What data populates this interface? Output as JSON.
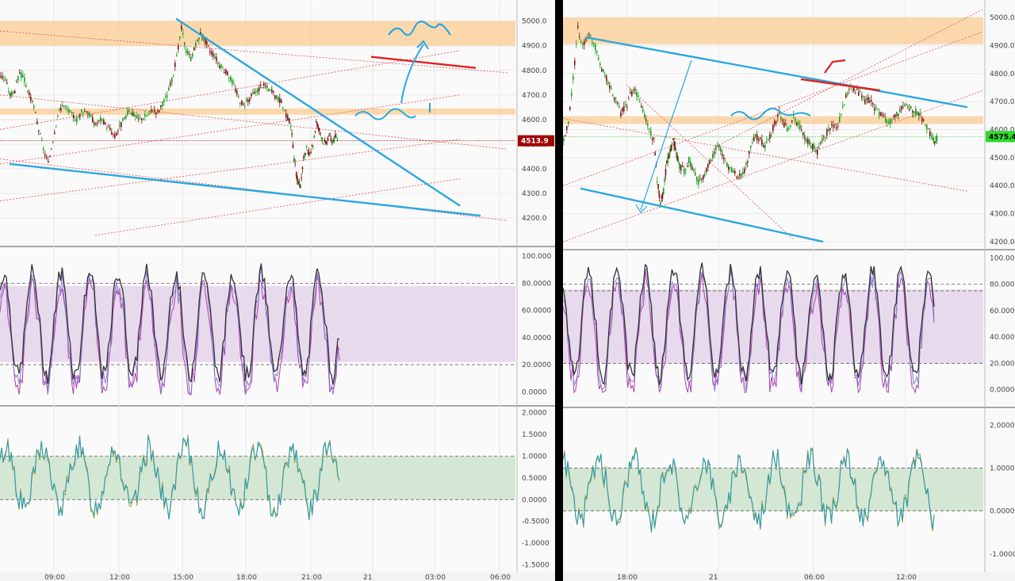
{
  "chart_data": [
    {
      "id": "left",
      "type": "candlestick-with-oscillators",
      "price_panel": {
        "ylim": [
          4120,
          5060
        ],
        "yticks": [
          "5000.0",
          "4900.0",
          "4800.0",
          "4700.0",
          "4600.0",
          "4500.0",
          "4400.0",
          "4300.0",
          "4200.0"
        ],
        "last_price": "4513.9",
        "last_price_color": "#a00000",
        "candle_colors": {
          "up": "#1a9e1a",
          "down": "#7a1010"
        },
        "price_path": [
          [
            0,
            4780
          ],
          [
            6,
            4760
          ],
          [
            12,
            4700
          ],
          [
            18,
            4720
          ],
          [
            24,
            4790
          ],
          [
            30,
            4760
          ],
          [
            36,
            4700
          ],
          [
            42,
            4650
          ],
          [
            48,
            4560
          ],
          [
            54,
            4480
          ],
          [
            60,
            4420
          ],
          [
            66,
            4520
          ],
          [
            72,
            4620
          ],
          [
            78,
            4660
          ],
          [
            84,
            4640
          ],
          [
            90,
            4620
          ],
          [
            96,
            4600
          ],
          [
            102,
            4630
          ],
          [
            108,
            4640
          ],
          [
            114,
            4610
          ],
          [
            120,
            4580
          ],
          [
            126,
            4600
          ],
          [
            132,
            4580
          ],
          [
            138,
            4560
          ],
          [
            144,
            4530
          ],
          [
            150,
            4570
          ],
          [
            156,
            4600
          ],
          [
            162,
            4640
          ],
          [
            168,
            4620
          ],
          [
            174,
            4600
          ],
          [
            180,
            4610
          ],
          [
            186,
            4620
          ],
          [
            192,
            4640
          ],
          [
            198,
            4630
          ],
          [
            204,
            4660
          ],
          [
            210,
            4700
          ],
          [
            216,
            4760
          ],
          [
            222,
            4850
          ],
          [
            228,
            4970
          ],
          [
            234,
            4880
          ],
          [
            240,
            4850
          ],
          [
            246,
            4900
          ],
          [
            252,
            4950
          ],
          [
            258,
            4920
          ],
          [
            264,
            4880
          ],
          [
            270,
            4860
          ],
          [
            276,
            4820
          ],
          [
            282,
            4800
          ],
          [
            288,
            4780
          ],
          [
            294,
            4740
          ],
          [
            300,
            4690
          ],
          [
            306,
            4660
          ],
          [
            312,
            4680
          ],
          [
            318,
            4700
          ],
          [
            324,
            4720
          ],
          [
            330,
            4740
          ],
          [
            336,
            4730
          ],
          [
            342,
            4710
          ],
          [
            348,
            4690
          ],
          [
            354,
            4670
          ],
          [
            360,
            4620
          ],
          [
            366,
            4580
          ],
          [
            370,
            4440
          ],
          [
            374,
            4360
          ],
          [
            378,
            4330
          ],
          [
            382,
            4440
          ],
          [
            386,
            4480
          ],
          [
            390,
            4450
          ],
          [
            394,
            4500
          ],
          [
            398,
            4590
          ],
          [
            402,
            4560
          ],
          [
            406,
            4520
          ],
          [
            410,
            4500
          ],
          [
            414,
            4540
          ],
          [
            418,
            4510
          ],
          [
            422,
            4530
          ],
          [
            426,
            4514
          ]
        ],
        "zones": [
          {
            "y1": 4900,
            "y2": 5000
          },
          {
            "y1": 4620,
            "y2": 4645
          }
        ],
        "trendlines": [
          {
            "x1": 222,
            "y1": 5010,
            "x2": 580,
            "y2": 4250,
            "color": "#2aa8e0"
          },
          {
            "x1": 12,
            "y1": 4420,
            "x2": 606,
            "y2": 4210,
            "color": "#2aa8e0"
          },
          {
            "x1": 468,
            "y1": 4855,
            "x2": 600,
            "y2": 4810,
            "color": "#e02020"
          }
        ],
        "dotted_lines": [
          {
            "x1": 0,
            "y1": 4560,
            "x2": 580,
            "y2": 4880
          },
          {
            "x1": 0,
            "y1": 4420,
            "x2": 580,
            "y2": 4700
          },
          {
            "x1": 0,
            "y1": 4270,
            "x2": 580,
            "y2": 4520
          },
          {
            "x1": 120,
            "y1": 4130,
            "x2": 580,
            "y2": 4360
          },
          {
            "x1": 0,
            "y1": 4960,
            "x2": 640,
            "y2": 4790
          },
          {
            "x1": 0,
            "y1": 4700,
            "x2": 640,
            "y2": 4480
          },
          {
            "x1": 0,
            "y1": 4440,
            "x2": 640,
            "y2": 4190
          }
        ],
        "hline": 4514
      },
      "stoch_panel": {
        "ylim": [
          -8,
          103
        ],
        "yticks": [
          "100.000",
          "80.0000",
          "60.0000",
          "40.0000",
          "20.0000",
          "0.0000"
        ],
        "band": [
          22,
          78
        ],
        "levels": [
          80,
          20
        ],
        "seed": 7,
        "length": 214,
        "amplitude": 38
      },
      "osc_panel": {
        "ylim": [
          -1.6,
          2.05
        ],
        "yticks": [
          "2.0000",
          "1.5000",
          "1.0000",
          "0.5000",
          "0.0000",
          "-0.5000",
          "-1.0000",
          "-1.5000"
        ],
        "band": [
          0,
          1
        ],
        "seed": 13,
        "length": 214
      },
      "xticks": [
        "09:00",
        "12:00",
        "15:00",
        "18:00",
        "21:00",
        "21",
        "03:00",
        "06:00"
      ]
    },
    {
      "id": "right",
      "type": "candlestick-with-oscillators",
      "price_panel": {
        "ylim": [
          4180,
          5040
        ],
        "yticks": [
          "5000.0",
          "4900.0",
          "4800.0",
          "4700.0",
          "4600.0",
          "4500.0",
          "4400.0",
          "4300.0",
          "4200.0"
        ],
        "last_price": "4575.4",
        "last_price_color": "#2ed82e",
        "candle_colors": {
          "up": "#1a9e1a",
          "down": "#7a1010"
        },
        "price_path": [
          [
            0,
            4560
          ],
          [
            6,
            4620
          ],
          [
            12,
            4780
          ],
          [
            18,
            4960
          ],
          [
            24,
            4900
          ],
          [
            30,
            4940
          ],
          [
            36,
            4920
          ],
          [
            42,
            4880
          ],
          [
            48,
            4820
          ],
          [
            54,
            4780
          ],
          [
            60,
            4740
          ],
          [
            66,
            4700
          ],
          [
            72,
            4660
          ],
          [
            78,
            4680
          ],
          [
            84,
            4720
          ],
          [
            90,
            4740
          ],
          [
            96,
            4700
          ],
          [
            102,
            4650
          ],
          [
            108,
            4600
          ],
          [
            114,
            4560
          ],
          [
            118,
            4420
          ],
          [
            122,
            4340
          ],
          [
            126,
            4380
          ],
          [
            130,
            4480
          ],
          [
            134,
            4520
          ],
          [
            138,
            4560
          ],
          [
            142,
            4520
          ],
          [
            146,
            4470
          ],
          [
            152,
            4450
          ],
          [
            158,
            4490
          ],
          [
            164,
            4450
          ],
          [
            170,
            4410
          ],
          [
            176,
            4430
          ],
          [
            182,
            4470
          ],
          [
            188,
            4510
          ],
          [
            194,
            4550
          ],
          [
            200,
            4510
          ],
          [
            206,
            4470
          ],
          [
            212,
            4460
          ],
          [
            218,
            4440
          ],
          [
            224,
            4430
          ],
          [
            230,
            4470
          ],
          [
            236,
            4540
          ],
          [
            242,
            4580
          ],
          [
            248,
            4560
          ],
          [
            254,
            4540
          ],
          [
            260,
            4580
          ],
          [
            266,
            4620
          ],
          [
            272,
            4660
          ],
          [
            278,
            4620
          ],
          [
            284,
            4600
          ],
          [
            290,
            4640
          ],
          [
            296,
            4620
          ],
          [
            302,
            4580
          ],
          [
            308,
            4560
          ],
          [
            314,
            4540
          ],
          [
            320,
            4520
          ],
          [
            326,
            4560
          ],
          [
            332,
            4590
          ],
          [
            338,
            4620
          ],
          [
            344,
            4610
          ],
          [
            350,
            4650
          ],
          [
            356,
            4720
          ],
          [
            362,
            4760
          ],
          [
            368,
            4740
          ],
          [
            374,
            4730
          ],
          [
            380,
            4700
          ],
          [
            386,
            4710
          ],
          [
            392,
            4680
          ],
          [
            398,
            4660
          ],
          [
            404,
            4640
          ],
          [
            410,
            4620
          ],
          [
            416,
            4640
          ],
          [
            422,
            4660
          ],
          [
            428,
            4680
          ],
          [
            434,
            4680
          ],
          [
            440,
            4670
          ],
          [
            446,
            4660
          ],
          [
            452,
            4640
          ],
          [
            458,
            4610
          ],
          [
            464,
            4575
          ],
          [
            468,
            4560
          ],
          [
            472,
            4575
          ]
        ],
        "zones": [
          {
            "y1": 4905,
            "y2": 5000
          },
          {
            "y1": 4620,
            "y2": 4648
          }
        ],
        "trendlines": [
          {
            "x1": 28,
            "y1": 4930,
            "x2": 510,
            "y2": 4680,
            "color": "#2aa8e0"
          },
          {
            "x1": 22,
            "y1": 4390,
            "x2": 328,
            "y2": 4200,
            "color": "#2aa8e0"
          },
          {
            "x1": 300,
            "y1": 4780,
            "x2": 400,
            "y2": 4740,
            "color": "#e02020"
          }
        ],
        "dotted_lines": [
          {
            "x1": 0,
            "y1": 4200,
            "x2": 530,
            "y2": 4740
          },
          {
            "x1": 0,
            "y1": 4400,
            "x2": 530,
            "y2": 4950
          },
          {
            "x1": 200,
            "y1": 4550,
            "x2": 530,
            "y2": 5030
          },
          {
            "x1": 0,
            "y1": 4640,
            "x2": 510,
            "y2": 4380
          },
          {
            "x1": 80,
            "y1": 4760,
            "x2": 290,
            "y2": 4210
          }
        ],
        "hline": 4575
      },
      "stoch_panel": {
        "ylim": [
          -8,
          102
        ],
        "yticks": [
          "100.000",
          "80.0000",
          "60.0000",
          "40.0000",
          "20.0000",
          "0.0000"
        ],
        "band": [
          20,
          76
        ],
        "levels": [
          80,
          75,
          20
        ],
        "seed": 21,
        "length": 236,
        "amplitude": 40
      },
      "osc_panel": {
        "ylim": [
          -1.3,
          2.3
        ],
        "yticks": [
          "2.0000",
          "1.0000",
          "0.0000",
          "-1.0000"
        ],
        "band": [
          0,
          1
        ],
        "seed": 33,
        "length": 236
      },
      "xticks": [
        "18:00",
        "21",
        "06:00",
        "12:00"
      ]
    }
  ]
}
